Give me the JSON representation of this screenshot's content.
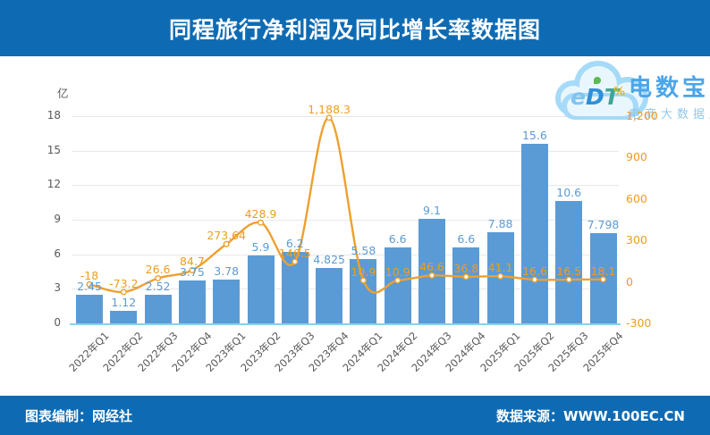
{
  "header": {
    "title": "同程旅行净利润及同比增长率数据图"
  },
  "footer": {
    "left": "图表编制：网经社",
    "right": "数据来源：WWW.100EC.CN"
  },
  "logo": {
    "cloud_text_e": "e",
    "cloud_text_d": "D",
    "cloud_text_t": "T",
    "brand": "电数宝",
    "subtitle": "电商大数据库"
  },
  "colors": {
    "header_bg": "#0E6BB3",
    "bar": "#5B9BD5",
    "bar_label": "#5B9BD5",
    "line": "#EEA02F",
    "line_label": "#ED9D20",
    "right_axis_text": "#ED9D20",
    "axis_text": "#595959",
    "gridline": "#E8E8E8",
    "baseline": "#7FD4F0"
  },
  "chart_data": {
    "type": "bar",
    "title": "同程旅行净利润及同比增长率数据图",
    "categories": [
      "2022年Q1",
      "2022年Q2",
      "2022年Q3",
      "2022年Q4",
      "2023年Q1",
      "2023年Q2",
      "2023年Q3",
      "2023年Q4",
      "2024年Q1",
      "2024年Q2",
      "2024年Q3",
      "2024年Q4",
      "2025年Q1",
      "2025年Q2",
      "2025年Q3",
      "2025年Q4"
    ],
    "series": [
      {
        "name": "净利润",
        "type": "bar",
        "values": [
          2.45,
          1.12,
          2.52,
          3.75,
          3.78,
          5.9,
          6.2,
          4.825,
          5.58,
          6.6,
          9.1,
          6.6,
          7.88,
          15.6,
          10.6,
          7.798
        ]
      },
      {
        "name": "同比增长率",
        "type": "line",
        "values": [
          -18,
          -73.2,
          26.6,
          84.7,
          273.64,
          428.9,
          146.5,
          1188.3,
          10.9,
          10.9,
          46.6,
          36.8,
          41.1,
          16.6,
          16.5,
          18.1
        ]
      }
    ],
    "left_axis": {
      "title": "亿",
      "ticks": [
        0,
        3,
        6,
        9,
        12,
        15,
        18
      ],
      "range": [
        0,
        18
      ]
    },
    "right_axis": {
      "title": "%",
      "ticks": [
        -300,
        0,
        300,
        600,
        900,
        1200
      ],
      "range": [
        -300,
        1200
      ]
    },
    "grid": true,
    "legend": "none"
  }
}
